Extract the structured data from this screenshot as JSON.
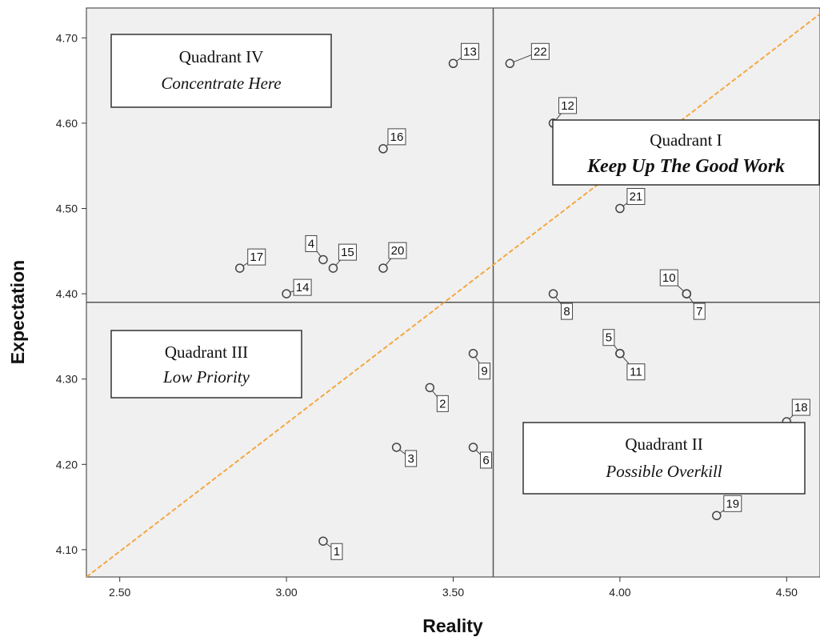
{
  "chart_data": {
    "type": "scatter",
    "xlabel": "Reality",
    "ylabel": "Expectation",
    "xlim": [
      2.4,
      4.6
    ],
    "ylim": [
      4.068,
      4.735
    ],
    "x_ticks": [
      "2.50",
      "3.00",
      "3.50",
      "4.00",
      "4.50"
    ],
    "y_ticks": [
      "4.10",
      "4.20",
      "4.30",
      "4.40",
      "4.50",
      "4.60",
      "4.70"
    ],
    "grid": false,
    "reference_lines": {
      "vertical_x": 3.62,
      "horizontal_y": 4.39
    },
    "diagonal_line": {
      "color": "#f5a742",
      "from": [
        2.4,
        4.068
      ],
      "to": [
        4.6,
        4.728
      ]
    },
    "points": [
      {
        "label": "1",
        "x": 3.11,
        "y": 4.11
      },
      {
        "label": "2",
        "x": 3.43,
        "y": 4.29
      },
      {
        "label": "3",
        "x": 3.33,
        "y": 4.22
      },
      {
        "label": "4",
        "x": 3.11,
        "y": 4.44
      },
      {
        "label": "5",
        "x": 4.0,
        "y": 4.33
      },
      {
        "label": "6",
        "x": 3.56,
        "y": 4.22
      },
      {
        "label": "7",
        "x": 4.2,
        "y": 4.4
      },
      {
        "label": "8",
        "x": 3.8,
        "y": 4.4
      },
      {
        "label": "9",
        "x": 3.56,
        "y": 4.33
      },
      {
        "label": "10",
        "x": 4.2,
        "y": 4.4
      },
      {
        "label": "11",
        "x": 4.0,
        "y": 4.33
      },
      {
        "label": "12",
        "x": 3.8,
        "y": 4.6
      },
      {
        "label": "13",
        "x": 3.5,
        "y": 4.67
      },
      {
        "label": "14",
        "x": 3.0,
        "y": 4.4
      },
      {
        "label": "15",
        "x": 3.14,
        "y": 4.43
      },
      {
        "label": "16",
        "x": 3.29,
        "y": 4.57
      },
      {
        "label": "17",
        "x": 2.86,
        "y": 4.43
      },
      {
        "label": "18",
        "x": 4.5,
        "y": 4.25
      },
      {
        "label": "19",
        "x": 4.29,
        "y": 4.14
      },
      {
        "label": "20",
        "x": 3.29,
        "y": 4.43
      },
      {
        "label": "21",
        "x": 4.0,
        "y": 4.5
      },
      {
        "label": "22",
        "x": 3.67,
        "y": 4.67
      }
    ],
    "quadrants": [
      {
        "title": "Quadrant I",
        "subtitle": "Keep Up The Good Work",
        "emphasis": true
      },
      {
        "title": "Quadrant II",
        "subtitle": "Possible Overkill",
        "emphasis": false
      },
      {
        "title": "Quadrant III",
        "subtitle": "Low Priority",
        "emphasis": false
      },
      {
        "title": "Quadrant IV",
        "subtitle": "Concentrate Here",
        "emphasis": false
      }
    ],
    "colors": {
      "background": "#f0f0f0",
      "diagonal": "#f5a742",
      "point_stroke": "#444444",
      "axis": "#555555"
    }
  }
}
